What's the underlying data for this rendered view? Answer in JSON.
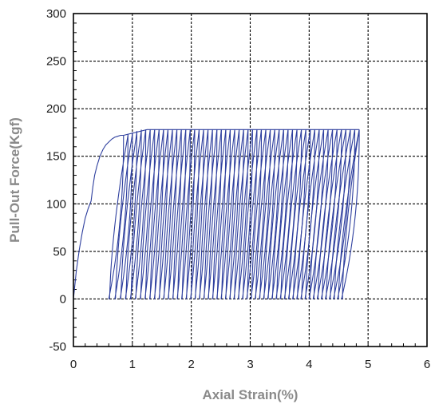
{
  "chart_data": {
    "type": "line",
    "title": "",
    "xlabel": "Axial Strain(%)",
    "ylabel": "Pull-Out Force(Kgf)",
    "xlim": [
      0,
      6
    ],
    "ylim": [
      -50,
      300
    ],
    "x_ticks": [
      0,
      1,
      2,
      3,
      4,
      5,
      6
    ],
    "y_ticks": [
      -50,
      0,
      50,
      100,
      150,
      200,
      250,
      300
    ],
    "x_tick_labels": [
      "0",
      "1",
      "2",
      "3",
      "4",
      "5",
      "6"
    ],
    "y_tick_labels": [
      "-50",
      "0",
      "50",
      "100",
      "150",
      "200",
      "250",
      "300"
    ],
    "grid": true,
    "legend": "none",
    "line_color": "#2e3f9e",
    "series": [
      {
        "values": "cyclic loading-unloading loops",
        "initial_loading": {
          "x": [
            0.0,
            0.05,
            0.1,
            0.15,
            0.2,
            0.25,
            0.3,
            0.33,
            0.36,
            0.4,
            0.45,
            0.5,
            0.55,
            0.6,
            0.65,
            0.7,
            0.75,
            0.8,
            0.85
          ],
          "y": [
            0,
            30,
            52,
            70,
            85,
            95,
            103,
            118,
            130,
            140,
            150,
            157,
            162,
            165,
            168,
            170,
            171,
            172,
            172
          ]
        },
        "cycles": {
          "count": 54,
          "first_unload_strain": 0.85,
          "last_unload_strain": 4.85,
          "peak_force_first": 172,
          "peak_force_plateau": 178,
          "residual_strain_first": 0.6,
          "residual_strain_last": 4.55,
          "min_force": 0
        }
      }
    ]
  }
}
